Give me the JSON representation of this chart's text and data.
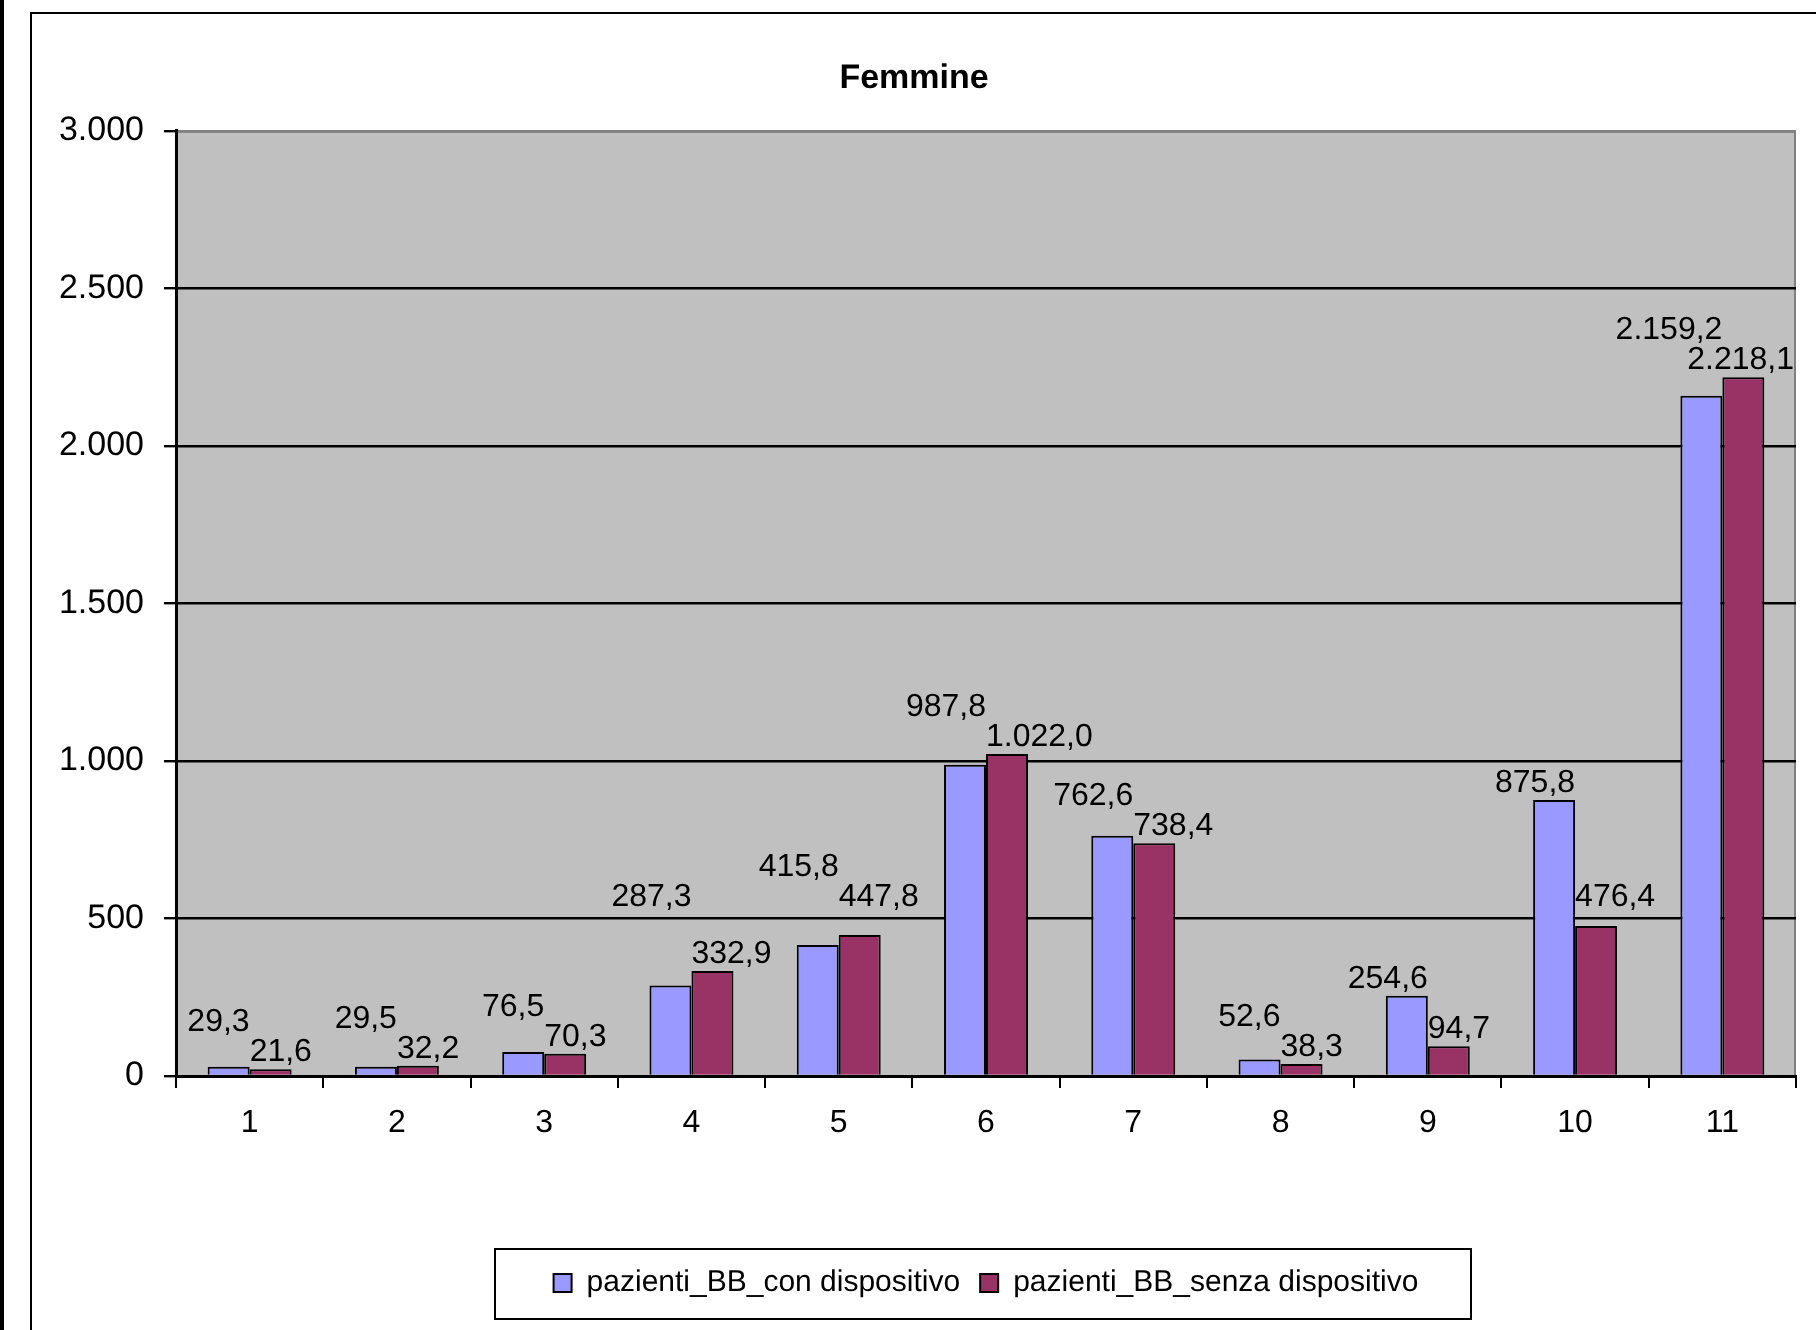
{
  "chart_data": {
    "type": "bar",
    "title": "Femmine",
    "categories": [
      "1",
      "2",
      "3",
      "4",
      "5",
      "6",
      "7",
      "8",
      "9",
      "10",
      "11"
    ],
    "series": [
      {
        "name": "pazienti_BB_con dispositivo",
        "color": "#9999ff",
        "values": [
          29.3,
          29.5,
          76.5,
          287.3,
          415.8,
          987.8,
          762.6,
          52.6,
          254.6,
          875.8,
          2159.2
        ],
        "value_labels": [
          "29,3",
          "29,5",
          "76,5",
          "287,3",
          "415,8",
          "987,8",
          "762,6",
          "52,6",
          "254,6",
          "875,8",
          "2.159,2"
        ]
      },
      {
        "name": "pazienti_BB_senza dispositivo",
        "color": "#993366",
        "values": [
          21.6,
          32.2,
          70.3,
          332.9,
          447.8,
          1022.0,
          738.4,
          38.3,
          94.7,
          476.4,
          2218.1
        ],
        "value_labels": [
          "21,6",
          "32,2",
          "70,3",
          "332,9",
          "447,8",
          "1.022,0",
          "738,4",
          "38,3",
          "94,7",
          "476,4",
          "2.218,1"
        ]
      }
    ],
    "ylim": [
      0,
      3000
    ],
    "yticks": [
      0,
      500,
      {
        "value": 1000,
        "label": "1.000"
      },
      {
        "value": 1500,
        "label": "1.500"
      },
      {
        "value": 2000,
        "label": "2.000"
      },
      {
        "value": 2500,
        "label": "2.500"
      },
      {
        "value": 3000,
        "label": "3.000"
      }
    ],
    "grid": "y",
    "legend": "bottom"
  }
}
